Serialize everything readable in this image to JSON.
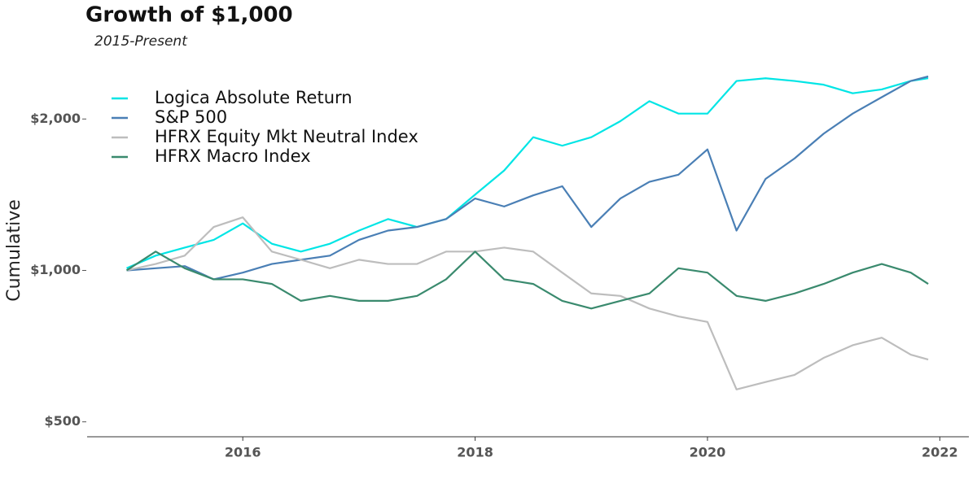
{
  "chart_data": {
    "type": "line",
    "title": "Growth of $1,000",
    "subtitle": "2015-Present",
    "y_label": "Cumulative",
    "log_scale_y": true,
    "legend_position": "upper left",
    "x": [
      2015.0,
      2015.25,
      2015.5,
      2015.75,
      2016.0,
      2016.25,
      2016.5,
      2016.75,
      2017.0,
      2017.25,
      2017.5,
      2017.75,
      2018.0,
      2018.25,
      2018.5,
      2018.75,
      2019.0,
      2019.25,
      2019.5,
      2019.75,
      2020.0,
      2020.25,
      2020.5,
      2020.75,
      2021.0,
      2021.25,
      2021.5,
      2021.75,
      2021.9
    ],
    "series": [
      {
        "name": "Logica Absolute Return",
        "color": "#00e5e5",
        "values": [
          1010,
          1070,
          1110,
          1150,
          1240,
          1130,
          1090,
          1130,
          1200,
          1265,
          1220,
          1265,
          1415,
          1580,
          1840,
          1770,
          1840,
          1980,
          2170,
          2050,
          2050,
          2380,
          2410,
          2380,
          2340,
          2250,
          2290,
          2380,
          2410
        ]
      },
      {
        "name": "S&P 500",
        "color": "#4a7fb5",
        "values": [
          1000,
          1010,
          1020,
          960,
          990,
          1030,
          1050,
          1070,
          1150,
          1200,
          1220,
          1265,
          1390,
          1340,
          1410,
          1470,
          1220,
          1390,
          1500,
          1550,
          1740,
          1200,
          1520,
          1670,
          1870,
          2050,
          2210,
          2380,
          2430
        ]
      },
      {
        "name": "HFRX Equity Mkt Neutral Index",
        "color": "#bdbdbd",
        "values": [
          1000,
          1030,
          1070,
          1220,
          1275,
          1090,
          1050,
          1010,
          1050,
          1030,
          1030,
          1090,
          1090,
          1110,
          1090,
          990,
          900,
          890,
          840,
          810,
          790,
          580,
          600,
          620,
          670,
          710,
          735,
          680,
          665
        ]
      },
      {
        "name": "HFRX Macro Index",
        "color": "#3a8a6e",
        "values": [
          1000,
          1090,
          1010,
          960,
          960,
          940,
          870,
          890,
          870,
          870,
          890,
          960,
          1090,
          960,
          940,
          870,
          840,
          870,
          900,
          1010,
          990,
          890,
          870,
          900,
          940,
          990,
          1030,
          990,
          940
        ]
      }
    ],
    "xlim": [
      2014.66,
      2022.25
    ],
    "xticks": [
      2016,
      2018,
      2020,
      2022
    ],
    "ylim": [
      467,
      2560
    ],
    "yticks": [
      {
        "value": 500,
        "label": "$500"
      },
      {
        "value": 1000,
        "label": "$1,000"
      },
      {
        "value": 2000,
        "label": "$2,000"
      }
    ]
  }
}
